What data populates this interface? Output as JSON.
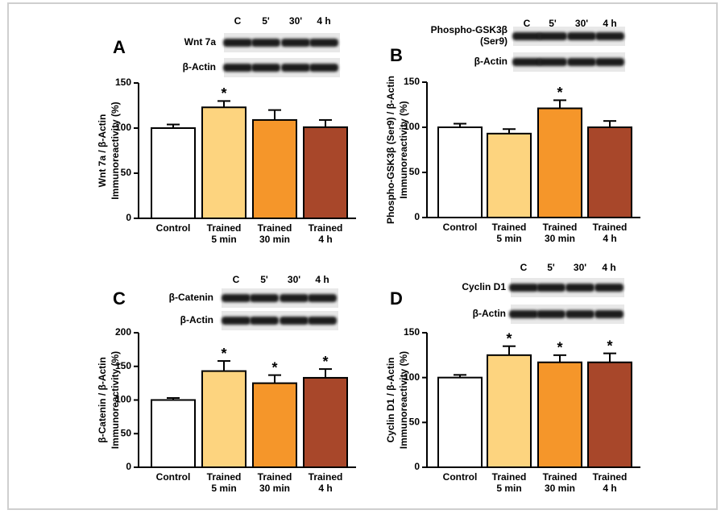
{
  "chart_data": [
    {
      "type": "bar",
      "panel_label": "A",
      "blot_lanes": [
        "C",
        "5'",
        "30'",
        "4 h"
      ],
      "blot_rows": [
        [
          "Wnt 7a"
        ],
        [
          "β-Actin"
        ]
      ],
      "ylabel": [
        "Wnt 7a / β-Actin",
        "Immunoreactivity (%)"
      ],
      "categories": [
        [
          "Control"
        ],
        [
          "Trained",
          "5 min"
        ],
        [
          "Trained",
          "30 min"
        ],
        [
          "Trained",
          "4 h"
        ]
      ],
      "values": [
        100,
        123,
        109,
        101
      ],
      "errors": [
        4,
        7,
        11,
        8
      ],
      "significance": [
        null,
        "*",
        null,
        null
      ],
      "colors": [
        "#ffffff",
        "#fdd47f",
        "#f5962a",
        "#a8472a"
      ],
      "ylim": [
        0,
        150
      ],
      "yticks": [
        0,
        50,
        100,
        150
      ]
    },
    {
      "type": "bar",
      "panel_label": "B",
      "blot_lanes": [
        "C",
        "5'",
        "30'",
        "4 h"
      ],
      "blot_rows": [
        [
          "Phospho-GSK3β",
          "(Ser9)"
        ],
        [
          "β-Actin"
        ]
      ],
      "ylabel": [
        "Phospho-GSK3β (Ser9) / β-Actin",
        "Immunoreactivity (%)"
      ],
      "categories": [
        [
          "Control"
        ],
        [
          "Trained",
          "5 min"
        ],
        [
          "Trained",
          "30 min"
        ],
        [
          "Trained",
          "4 h"
        ]
      ],
      "values": [
        100,
        93,
        121,
        100
      ],
      "errors": [
        4,
        5,
        9,
        7
      ],
      "significance": [
        null,
        null,
        "*",
        null
      ],
      "colors": [
        "#ffffff",
        "#fdd47f",
        "#f5962a",
        "#a8472a"
      ],
      "ylim": [
        0,
        150
      ],
      "yticks": [
        0,
        50,
        100,
        150
      ]
    },
    {
      "type": "bar",
      "panel_label": "C",
      "blot_lanes": [
        "C",
        "5'",
        "30'",
        "4 h"
      ],
      "blot_rows": [
        [
          "β-Catenin"
        ],
        [
          "β-Actin"
        ]
      ],
      "ylabel": [
        "β-Catenin / β-Actin",
        "Immunoreactivity (%)"
      ],
      "categories": [
        [
          "Control"
        ],
        [
          "Trained",
          "5 min"
        ],
        [
          "Trained",
          "30 min"
        ],
        [
          "Trained",
          "4 h"
        ]
      ],
      "values": [
        100,
        143,
        125,
        133
      ],
      "errors": [
        3,
        15,
        12,
        13
      ],
      "significance": [
        null,
        "*",
        "*",
        "*"
      ],
      "colors": [
        "#ffffff",
        "#fdd47f",
        "#f5962a",
        "#a8472a"
      ],
      "ylim": [
        0,
        200
      ],
      "yticks": [
        0,
        50,
        100,
        150,
        200
      ]
    },
    {
      "type": "bar",
      "panel_label": "D",
      "blot_lanes": [
        "C",
        "5'",
        "30'",
        "4 h"
      ],
      "blot_rows": [
        [
          "Cyclin D1"
        ],
        [
          "β-Actin"
        ]
      ],
      "ylabel": [
        "Cyclin D1 / β-Actin",
        "Immunoreactivity (%)"
      ],
      "categories": [
        [
          "Control"
        ],
        [
          "Trained",
          "5 min"
        ],
        [
          "Trained",
          "30 min"
        ],
        [
          "Trained",
          "4 h"
        ]
      ],
      "values": [
        100,
        125,
        117,
        117
      ],
      "errors": [
        3,
        10,
        8,
        10
      ],
      "significance": [
        null,
        "*",
        "*",
        "*"
      ],
      "colors": [
        "#ffffff",
        "#fdd47f",
        "#f5962a",
        "#a8472a"
      ],
      "ylim": [
        0,
        150
      ],
      "yticks": [
        0,
        50,
        100,
        150
      ]
    }
  ]
}
